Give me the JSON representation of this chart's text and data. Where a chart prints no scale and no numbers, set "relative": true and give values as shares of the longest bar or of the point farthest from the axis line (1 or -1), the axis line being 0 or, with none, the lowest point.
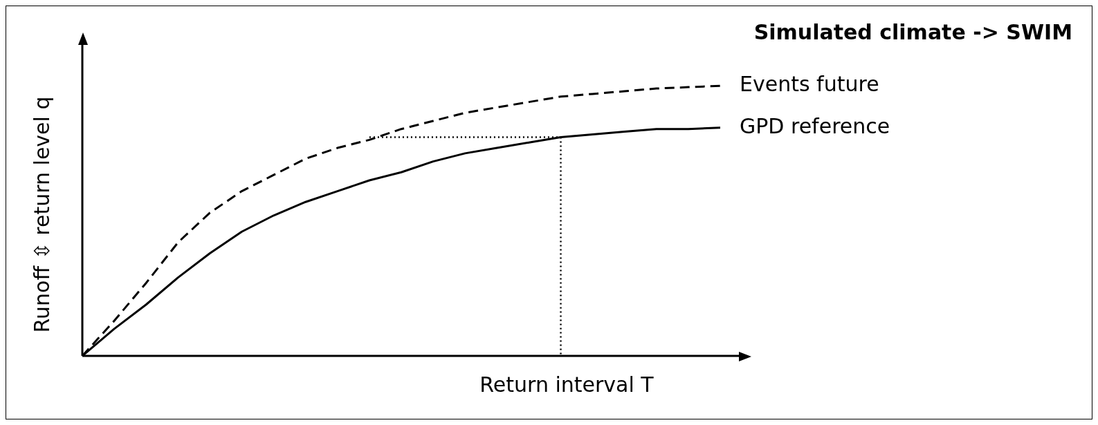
{
  "chart_data": {
    "type": "line",
    "title": "Simulated climate -> SWIM",
    "xlabel": "Return interval T",
    "ylabel": "Runoff ⇳ return level q",
    "relative": true,
    "marker": "none",
    "categories": [
      null,
      null,
      null,
      null,
      null,
      null,
      null,
      null,
      null,
      null,
      null,
      null,
      null,
      null,
      null,
      null,
      null,
      null,
      null,
      null,
      null
    ],
    "series": [
      {
        "name": "Events future",
        "color": "#000000",
        "line_style": "dashed",
        "values": [
          0,
          0.13,
          0.27,
          0.42,
          0.53,
          0.61,
          0.67,
          0.73,
          0.77,
          0.8,
          0.84,
          0.87,
          0.9,
          0.92,
          0.94,
          0.96,
          0.97,
          0.98,
          0.99,
          0.995,
          1
        ]
      },
      {
        "name": "GPD reference",
        "color": "#000000",
        "line_style": "solid",
        "values": [
          0,
          0.1,
          0.19,
          0.29,
          0.38,
          0.46,
          0.52,
          0.57,
          0.61,
          0.65,
          0.68,
          0.72,
          0.75,
          0.77,
          0.79,
          0.81,
          0.82,
          0.83,
          0.84,
          0.84,
          0.845
        ]
      },
      {
        "color": "#000000",
        "line_style": "dotted",
        "values": [
          null,
          null,
          null,
          null,
          null,
          null,
          null,
          null,
          null,
          0.81,
          0.81,
          0.81,
          0.81,
          0.81,
          0.81,
          0.81,
          null,
          null,
          null,
          null,
          null
        ]
      }
    ]
  }
}
